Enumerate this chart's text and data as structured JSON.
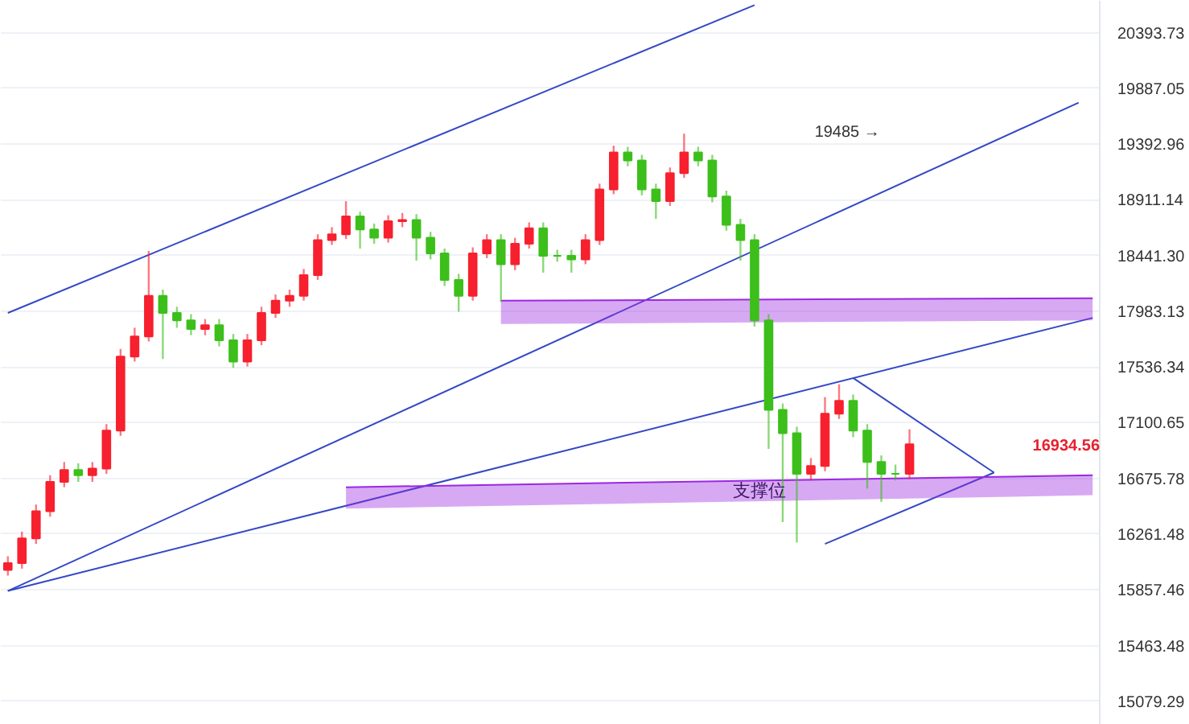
{
  "chart_data": {
    "type": "candlestick",
    "categories": [
      null,
      null,
      null,
      null,
      null,
      null,
      null,
      null,
      null,
      null,
      null,
      null,
      null,
      null,
      null,
      null,
      null,
      null,
      null,
      null,
      null,
      null,
      null,
      null,
      null,
      null,
      null,
      null,
      null,
      null,
      null,
      null,
      null,
      null,
      null,
      null,
      null,
      null,
      null,
      null,
      null,
      null,
      null,
      null,
      null,
      null,
      null,
      null,
      null,
      null,
      null,
      null,
      null,
      null,
      null,
      null,
      null,
      null,
      null,
      null,
      null,
      null,
      null,
      null,
      null,
      null,
      null,
      null,
      null,
      null,
      null,
      null,
      null,
      null,
      null,
      null,
      null,
      null
    ],
    "ohlc": [
      [
        16000,
        16100,
        15960,
        16050
      ],
      [
        16050,
        16280,
        16010,
        16230
      ],
      [
        16230,
        16480,
        16190,
        16430
      ],
      [
        16430,
        16700,
        16390,
        16650
      ],
      [
        16650,
        16800,
        16610,
        16740
      ],
      [
        16740,
        16790,
        16650,
        16700
      ],
      [
        16700,
        16800,
        16650,
        16750
      ],
      [
        16750,
        17090,
        16710,
        17040
      ],
      [
        17040,
        17680,
        17000,
        17620
      ],
      [
        17620,
        17850,
        17580,
        17780
      ],
      [
        17780,
        18480,
        17740,
        18110
      ],
      [
        18110,
        18160,
        17600,
        17970
      ],
      [
        17970,
        18020,
        17850,
        17910
      ],
      [
        17910,
        17960,
        17790,
        17840
      ],
      [
        17840,
        17920,
        17790,
        17870
      ],
      [
        17870,
        17920,
        17700,
        17750
      ],
      [
        17750,
        17800,
        17530,
        17580
      ],
      [
        17580,
        17800,
        17540,
        17750
      ],
      [
        17750,
        18020,
        17710,
        17970
      ],
      [
        17970,
        18120,
        17930,
        18070
      ],
      [
        18070,
        18160,
        18020,
        18110
      ],
      [
        18110,
        18330,
        18070,
        18280
      ],
      [
        18280,
        18620,
        18240,
        18570
      ],
      [
        18570,
        18680,
        18530,
        18620
      ],
      [
        18620,
        18900,
        18580,
        18770
      ],
      [
        18770,
        18810,
        18500,
        18660
      ],
      [
        18660,
        18710,
        18540,
        18590
      ],
      [
        18590,
        18780,
        18550,
        18730
      ],
      [
        18730,
        18800,
        18680,
        18740
      ],
      [
        18740,
        18790,
        18400,
        18590
      ],
      [
        18590,
        18640,
        18410,
        18460
      ],
      [
        18460,
        18500,
        18190,
        18240
      ],
      [
        18240,
        18290,
        17980,
        18110
      ],
      [
        18110,
        18510,
        18070,
        18460
      ],
      [
        18460,
        18620,
        18420,
        18570
      ],
      [
        18570,
        18620,
        18060,
        18370
      ],
      [
        18370,
        18590,
        18320,
        18540
      ],
      [
        18540,
        18720,
        18500,
        18670
      ],
      [
        18670,
        18720,
        18300,
        18440
      ],
      [
        18440,
        18490,
        18390,
        18440
      ],
      [
        18440,
        18490,
        18300,
        18410
      ],
      [
        18410,
        18620,
        18370,
        18570
      ],
      [
        18570,
        19050,
        18530,
        19000
      ],
      [
        19000,
        19380,
        18960,
        19320
      ],
      [
        19320,
        19370,
        19200,
        19250
      ],
      [
        19250,
        19300,
        18950,
        19000
      ],
      [
        19000,
        19050,
        18750,
        18900
      ],
      [
        18900,
        19190,
        18860,
        19140
      ],
      [
        19140,
        19485,
        19100,
        19320
      ],
      [
        19320,
        19370,
        19200,
        19250
      ],
      [
        19250,
        19300,
        18890,
        18940
      ],
      [
        18940,
        18990,
        18650,
        18700
      ],
      [
        18700,
        18750,
        18400,
        18570
      ],
      [
        18570,
        18620,
        17860,
        17910
      ],
      [
        17910,
        17960,
        16900,
        17200
      ],
      [
        17200,
        17250,
        16350,
        17020
      ],
      [
        17020,
        17070,
        16200,
        16710
      ],
      [
        16710,
        16830,
        16660,
        16770
      ],
      [
        16770,
        17300,
        16730,
        17170
      ],
      [
        17170,
        17400,
        17130,
        17270
      ],
      [
        17270,
        17320,
        16990,
        17040
      ],
      [
        17040,
        17090,
        16600,
        16800
      ],
      [
        16800,
        16850,
        16500,
        16710
      ],
      [
        16710,
        16780,
        16660,
        16710
      ],
      [
        16710,
        17050,
        16670,
        16934.56
      ],
      null,
      null,
      null,
      null,
      null,
      null,
      null,
      null,
      null,
      null,
      null,
      null,
      null
    ],
    "colors": [
      "#f7202e",
      "#f7202e",
      "#f7202e",
      "#f7202e",
      "#f7202e",
      "#3cbf1b",
      "#f7202e",
      "#f7202e",
      "#f7202e",
      "#f7202e",
      "#f7202e",
      "#3cbf1b",
      "#3cbf1b",
      "#3cbf1b",
      "#f7202e",
      "#3cbf1b",
      "#3cbf1b",
      "#f7202e",
      "#f7202e",
      "#f7202e",
      "#f7202e",
      "#f7202e",
      "#f7202e",
      "#f7202e",
      "#f7202e",
      "#3cbf1b",
      "#3cbf1b",
      "#f7202e",
      "#f7202e",
      "#3cbf1b",
      "#3cbf1b",
      "#3cbf1b",
      "#3cbf1b",
      "#f7202e",
      "#f7202e",
      "#3cbf1b",
      "#f7202e",
      "#f7202e",
      "#3cbf1b",
      "#3cbf1b",
      "#3cbf1b",
      "#f7202e",
      "#f7202e",
      "#f7202e",
      "#3cbf1b",
      "#3cbf1b",
      "#3cbf1b",
      "#f7202e",
      "#f7202e",
      "#3cbf1b",
      "#3cbf1b",
      "#3cbf1b",
      "#3cbf1b",
      "#3cbf1b",
      "#3cbf1b",
      "#3cbf1b",
      "#3cbf1b",
      "#f7202e",
      "#f7202e",
      "#f7202e",
      "#3cbf1b",
      "#3cbf1b",
      "#3cbf1b",
      "#3cbf1b",
      "#f7202e",
      null,
      null,
      null,
      null,
      null,
      null,
      null,
      null,
      null,
      null,
      null,
      null,
      null
    ],
    "series": [
      {
        "type": "line",
        "color": "#3448c5",
        "values": [
          17970,
          null,
          null,
          null,
          null,
          null,
          null,
          null,
          null,
          null,
          null,
          null,
          null,
          null,
          null,
          null,
          null,
          null,
          null,
          null,
          null,
          null,
          null,
          null,
          null,
          null,
          null,
          null,
          null,
          null,
          null,
          null,
          null,
          null,
          null,
          null,
          null,
          null,
          null,
          null,
          null,
          null,
          null,
          null,
          null,
          null,
          null,
          null,
          null,
          null,
          null,
          null,
          null,
          20650,
          null,
          null,
          null,
          null,
          null,
          null,
          null,
          null,
          null,
          null,
          null,
          null,
          null,
          null,
          null,
          null,
          null,
          null,
          null,
          null,
          null,
          null,
          null,
          null
        ]
      },
      {
        "type": "line",
        "color": "#3448c5",
        "values": [
          15850,
          null,
          null,
          null,
          null,
          null,
          null,
          null,
          null,
          null,
          null,
          null,
          null,
          null,
          null,
          null,
          null,
          null,
          null,
          null,
          null,
          null,
          null,
          null,
          null,
          null,
          null,
          null,
          null,
          null,
          null,
          null,
          null,
          null,
          null,
          null,
          null,
          null,
          null,
          null,
          null,
          null,
          null,
          null,
          null,
          null,
          null,
          null,
          null,
          null,
          null,
          null,
          null,
          null,
          null,
          null,
          null,
          null,
          null,
          null,
          null,
          null,
          null,
          null,
          null,
          null,
          null,
          null,
          null,
          null,
          null,
          null,
          null,
          null,
          null,
          null,
          19760,
          null
        ]
      },
      {
        "type": "line",
        "color": "#3448c5",
        "values": [
          15850,
          null,
          null,
          null,
          null,
          null,
          null,
          null,
          null,
          null,
          null,
          null,
          null,
          null,
          null,
          null,
          null,
          null,
          null,
          null,
          null,
          null,
          null,
          null,
          null,
          null,
          null,
          null,
          null,
          null,
          null,
          null,
          null,
          null,
          null,
          null,
          null,
          null,
          null,
          null,
          null,
          null,
          null,
          null,
          null,
          null,
          null,
          null,
          null,
          null,
          null,
          null,
          null,
          null,
          null,
          null,
          null,
          null,
          null,
          null,
          null,
          null,
          null,
          null,
          null,
          null,
          null,
          null,
          null,
          null,
          null,
          null,
          null,
          null,
          null,
          null,
          null,
          17930
        ]
      },
      {
        "type": "line",
        "color": "#3448c5",
        "values": [
          null,
          null,
          null,
          null,
          null,
          null,
          null,
          null,
          null,
          null,
          null,
          null,
          null,
          null,
          null,
          null,
          null,
          null,
          null,
          null,
          null,
          null,
          null,
          null,
          null,
          null,
          null,
          null,
          null,
          null,
          null,
          null,
          null,
          null,
          null,
          null,
          null,
          null,
          null,
          null,
          null,
          null,
          null,
          null,
          null,
          null,
          null,
          null,
          null,
          null,
          null,
          null,
          null,
          null,
          null,
          null,
          null,
          null,
          null,
          null,
          17450,
          null,
          null,
          null,
          null,
          null,
          null,
          null,
          null,
          null,
          16720,
          null,
          null,
          null,
          null,
          null,
          null,
          null
        ]
      },
      {
        "type": "line",
        "color": "#3448c5",
        "values": [
          null,
          null,
          null,
          null,
          null,
          null,
          null,
          null,
          null,
          null,
          null,
          null,
          null,
          null,
          null,
          null,
          null,
          null,
          null,
          null,
          null,
          null,
          null,
          null,
          null,
          null,
          null,
          null,
          null,
          null,
          null,
          null,
          null,
          null,
          null,
          null,
          null,
          null,
          null,
          null,
          null,
          null,
          null,
          null,
          null,
          null,
          null,
          null,
          null,
          null,
          null,
          null,
          null,
          null,
          null,
          null,
          null,
          null,
          16190,
          null,
          null,
          null,
          null,
          null,
          null,
          null,
          null,
          null,
          null,
          null,
          16720,
          null,
          null,
          null,
          null,
          null,
          null,
          null
        ]
      },
      {
        "type": "line",
        "color": "#9c27e0",
        "values": [
          null,
          null,
          null,
          null,
          null,
          null,
          null,
          null,
          null,
          null,
          null,
          null,
          null,
          null,
          null,
          null,
          null,
          null,
          null,
          null,
          null,
          null,
          null,
          null,
          null,
          null,
          null,
          null,
          null,
          null,
          null,
          null,
          null,
          null,
          null,
          18070,
          null,
          null,
          null,
          null,
          null,
          null,
          null,
          null,
          null,
          null,
          null,
          null,
          null,
          null,
          null,
          null,
          null,
          null,
          null,
          null,
          null,
          null,
          null,
          null,
          null,
          null,
          null,
          null,
          null,
          null,
          null,
          null,
          null,
          null,
          null,
          null,
          null,
          null,
          null,
          null,
          null,
          18090
        ],
        "lower": [
          null,
          null,
          null,
          null,
          null,
          null,
          null,
          null,
          null,
          null,
          null,
          null,
          null,
          null,
          null,
          null,
          null,
          null,
          null,
          null,
          null,
          null,
          null,
          null,
          null,
          null,
          null,
          null,
          null,
          null,
          null,
          null,
          null,
          null,
          null,
          17880,
          null,
          null,
          null,
          null,
          null,
          null,
          null,
          null,
          null,
          null,
          null,
          null,
          null,
          null,
          null,
          null,
          null,
          null,
          null,
          null,
          null,
          null,
          null,
          null,
          null,
          null,
          null,
          null,
          null,
          null,
          null,
          null,
          null,
          null,
          null,
          null,
          null,
          null,
          null,
          null,
          null,
          17910
        ],
        "upper": [
          null,
          null,
          null,
          null,
          null,
          null,
          null,
          null,
          null,
          null,
          null,
          null,
          null,
          null,
          null,
          null,
          null,
          null,
          null,
          null,
          null,
          null,
          null,
          null,
          null,
          null,
          null,
          null,
          null,
          null,
          null,
          null,
          null,
          null,
          null,
          18070,
          null,
          null,
          null,
          null,
          null,
          null,
          null,
          null,
          null,
          null,
          null,
          null,
          null,
          null,
          null,
          null,
          null,
          null,
          null,
          null,
          null,
          null,
          null,
          null,
          null,
          null,
          null,
          null,
          null,
          null,
          null,
          null,
          null,
          null,
          null,
          null,
          null,
          null,
          null,
          null,
          null,
          18090
        ]
      },
      {
        "type": "line",
        "color": "#9c27e0",
        "values": [
          null,
          null,
          null,
          null,
          null,
          null,
          null,
          null,
          null,
          null,
          null,
          null,
          null,
          null,
          null,
          null,
          null,
          null,
          null,
          null,
          null,
          null,
          null,
          null,
          16610,
          null,
          null,
          null,
          null,
          null,
          null,
          null,
          null,
          null,
          null,
          null,
          null,
          null,
          null,
          null,
          null,
          null,
          null,
          null,
          null,
          null,
          null,
          null,
          null,
          null,
          null,
          null,
          null,
          null,
          null,
          null,
          null,
          null,
          null,
          null,
          null,
          null,
          null,
          null,
          null,
          null,
          null,
          null,
          null,
          null,
          null,
          null,
          null,
          null,
          null,
          null,
          null,
          16700
        ],
        "lower": [
          null,
          null,
          null,
          null,
          null,
          null,
          null,
          null,
          null,
          null,
          null,
          null,
          null,
          null,
          null,
          null,
          null,
          null,
          null,
          null,
          null,
          null,
          null,
          null,
          16450,
          null,
          null,
          null,
          null,
          null,
          null,
          null,
          null,
          null,
          null,
          null,
          null,
          null,
          null,
          null,
          null,
          null,
          null,
          null,
          null,
          null,
          null,
          null,
          null,
          null,
          null,
          null,
          null,
          null,
          null,
          null,
          null,
          null,
          null,
          null,
          null,
          null,
          null,
          null,
          null,
          null,
          null,
          null,
          null,
          null,
          null,
          null,
          null,
          null,
          null,
          null,
          null,
          16550
        ],
        "upper": [
          null,
          null,
          null,
          null,
          null,
          null,
          null,
          null,
          null,
          null,
          null,
          null,
          null,
          null,
          null,
          null,
          null,
          null,
          null,
          null,
          null,
          null,
          null,
          null,
          16610,
          null,
          null,
          null,
          null,
          null,
          null,
          null,
          null,
          null,
          null,
          null,
          null,
          null,
          null,
          null,
          null,
          null,
          null,
          null,
          null,
          null,
          null,
          null,
          null,
          null,
          null,
          null,
          null,
          null,
          null,
          null,
          null,
          null,
          null,
          null,
          null,
          null,
          null,
          null,
          null,
          null,
          null,
          null,
          null,
          null,
          null,
          null,
          null,
          null,
          null,
          null,
          null,
          16700
        ]
      }
    ],
    "ylim": [
      14920,
      20690
    ],
    "log": true,
    "grid": "y",
    "yticks": [
      20393.73,
      19887.05,
      19392.96,
      18911.14,
      {
        "value": 18441.3,
        "label": "18441.30"
      },
      17983.13,
      17536.34,
      17100.65,
      16675.78,
      16261.48,
      15857.46,
      15463.48,
      15079.29
    ],
    "annotations": [
      "19485 →",
      "支撑位",
      "16934.56"
    ]
  }
}
